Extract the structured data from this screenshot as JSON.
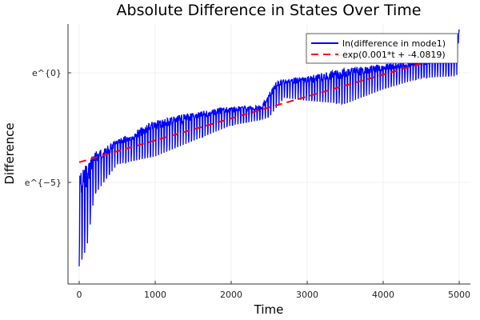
{
  "chart_data": {
    "type": "line",
    "title": "Absolute Difference in States Over Time",
    "xlabel": "Time",
    "ylabel": "Difference",
    "xlim": [
      -300,
      5300
    ],
    "ylim": [
      -9.64,
      2.23
    ],
    "xticks": [
      0,
      1000,
      2000,
      3000,
      4000,
      5000
    ],
    "xtick_labels": [
      "0",
      "1000",
      "2000",
      "3000",
      "4000",
      "5000"
    ],
    "yticks": [
      0,
      -5
    ],
    "ytick_labels": [
      "e^{0}",
      "e^{−5}"
    ],
    "grid": true,
    "legend_position": "top-right",
    "series": [
      {
        "name": "ln(difference in mode1)",
        "color": "#0000ff",
        "style": "solid",
        "upper_envelope": [
          [
            0,
            -4.6
          ],
          [
            200,
            -3.6
          ],
          [
            500,
            -3.07
          ],
          [
            1000,
            -2.15
          ],
          [
            1500,
            -1.8
          ],
          [
            2000,
            -1.53
          ],
          [
            2400,
            -1.5
          ],
          [
            2600,
            -0.33
          ],
          [
            3000,
            -0.15
          ],
          [
            3500,
            0.2
          ],
          [
            4000,
            0.4
          ],
          [
            4500,
            0.58
          ],
          [
            4950,
            0.8
          ],
          [
            5000,
            2.2
          ]
        ],
        "lower_envelope": [
          [
            0,
            -9.3
          ],
          [
            100,
            -8.4
          ],
          [
            200,
            -5.8
          ],
          [
            500,
            -4.3
          ],
          [
            1000,
            -4.0
          ],
          [
            1500,
            -3.25
          ],
          [
            2000,
            -2.5
          ],
          [
            2500,
            -2.15
          ],
          [
            2700,
            -1.24
          ],
          [
            3000,
            -1.4
          ],
          [
            3500,
            -1.6
          ],
          [
            4000,
            -0.88
          ],
          [
            4500,
            -0.33
          ],
          [
            5000,
            -0.25
          ]
        ]
      },
      {
        "name": "exp(0.001*t + -4.0819)",
        "color": "#ff0000",
        "style": "dashed",
        "slope": 0.001,
        "intercept": -4.0819,
        "x_range": [
          0,
          5000
        ]
      }
    ]
  }
}
